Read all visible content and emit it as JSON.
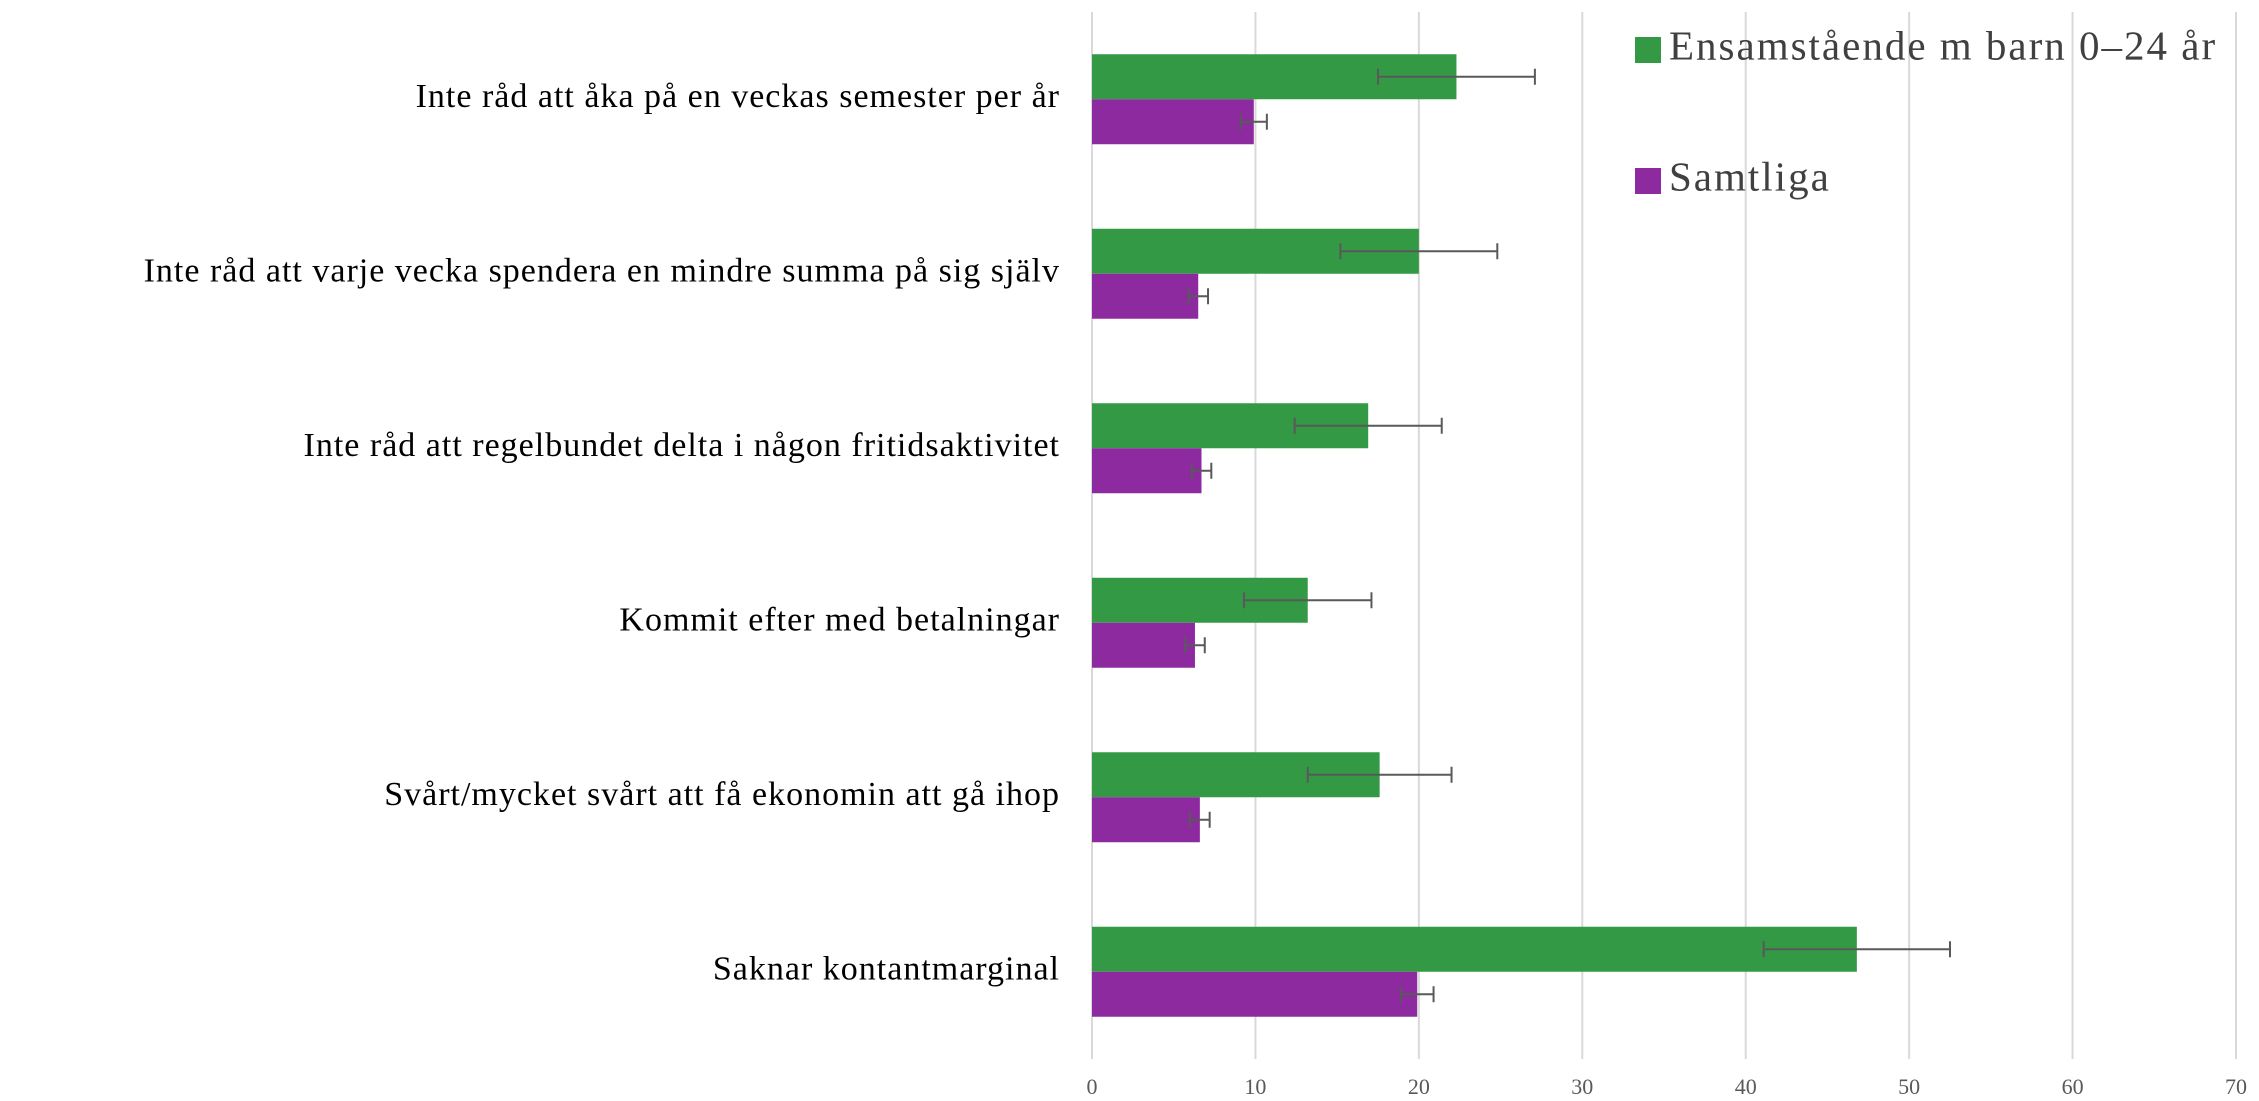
{
  "chart_data": {
    "type": "hbar",
    "categories": [
      "Inte råd att åka på en veckas semester per år",
      "Inte råd att varje vecka spendera en mindre summa på sig själv",
      "Inte råd att regelbundet delta i någon fritidsaktivitet",
      "Kommit efter med betalningar",
      "Svårt/mycket svårt att få ekonomin att gå ihop",
      "Saknar kontantmarginal"
    ],
    "series": [
      {
        "name": "Ensamstående m barn 0–24 år",
        "color": "#339944",
        "values": [
          22.3,
          20.0,
          16.9,
          13.2,
          17.6,
          46.8
        ],
        "errors": [
          4.8,
          4.8,
          4.5,
          3.9,
          4.4,
          5.7
        ]
      },
      {
        "name": "Samtliga",
        "color": "#8e2aa0",
        "values": [
          9.9,
          6.5,
          6.7,
          6.3,
          6.6,
          19.9
        ],
        "errors": [
          0.8,
          0.6,
          0.6,
          0.6,
          0.6,
          1.0
        ]
      }
    ],
    "xlim": [
      0,
      70
    ],
    "xticks": [
      0,
      10,
      20,
      30,
      40,
      50,
      60,
      70
    ],
    "grid": true,
    "legend": "top-right"
  }
}
